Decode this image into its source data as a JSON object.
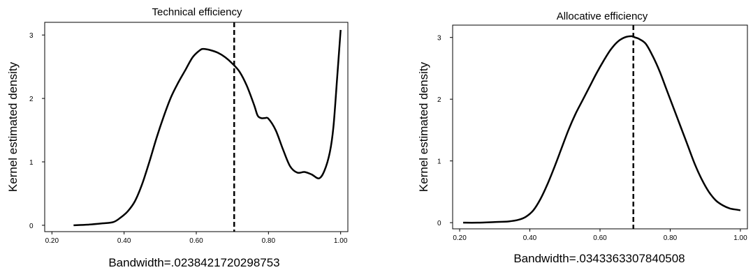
{
  "chart_data": [
    {
      "type": "line",
      "title": "Technical efficiency",
      "xlabel": "Bandwidth=.0238421720298753",
      "ylabel": "Kernel estimated density",
      "xlim": [
        0.18,
        1.02
      ],
      "ylim": [
        -0.1,
        3.2
      ],
      "xticks": [
        0.2,
        0.4,
        0.6,
        0.8,
        1.0
      ],
      "xtick_labels": [
        "0.20",
        "0.40",
        "0.60",
        "0.80",
        "1.00"
      ],
      "yticks": [
        0,
        1,
        2,
        3
      ],
      "ytick_labels": [
        "0",
        "1",
        "2",
        "3"
      ],
      "reference_line_x": 0.705,
      "grid": false,
      "series": [
        {
          "x": [
            0.26,
            0.3,
            0.34,
            0.37,
            0.39,
            0.41,
            0.43,
            0.45,
            0.47,
            0.49,
            0.51,
            0.53,
            0.55,
            0.57,
            0.59,
            0.61,
            0.62,
            0.64,
            0.66,
            0.68,
            0.7,
            0.72,
            0.74,
            0.76,
            0.77,
            0.78,
            0.79,
            0.8,
            0.82,
            0.84,
            0.86,
            0.88,
            0.9,
            0.92,
            0.94,
            0.955,
            0.97,
            0.98,
            0.99,
            1.0
          ],
          "y": [
            0.0,
            0.01,
            0.03,
            0.05,
            0.12,
            0.22,
            0.38,
            0.65,
            1.0,
            1.38,
            1.72,
            2.02,
            2.25,
            2.45,
            2.65,
            2.76,
            2.78,
            2.76,
            2.72,
            2.65,
            2.55,
            2.42,
            2.2,
            1.9,
            1.73,
            1.69,
            1.69,
            1.68,
            1.5,
            1.2,
            0.93,
            0.83,
            0.84,
            0.8,
            0.74,
            0.86,
            1.15,
            1.55,
            2.3,
            3.08
          ]
        }
      ]
    },
    {
      "type": "line",
      "title": "Allocative efficiency",
      "xlabel": "Bandwidth=.0343363307840508",
      "ylabel": "Kernel estimated density",
      "xlim": [
        0.18,
        1.02
      ],
      "ylim": [
        -0.1,
        3.2
      ],
      "xticks": [
        0.2,
        0.4,
        0.6,
        0.8,
        1.0
      ],
      "xtick_labels": [
        "0.20",
        "0.40",
        "0.60",
        "0.80",
        "1.00"
      ],
      "yticks": [
        0,
        1,
        2,
        3
      ],
      "ytick_labels": [
        "0",
        "1",
        "2",
        "3"
      ],
      "reference_line_x": 0.695,
      "grid": false,
      "series": [
        {
          "x": [
            0.21,
            0.25,
            0.3,
            0.34,
            0.37,
            0.39,
            0.41,
            0.43,
            0.45,
            0.47,
            0.49,
            0.51,
            0.53,
            0.55,
            0.57,
            0.59,
            0.61,
            0.63,
            0.65,
            0.67,
            0.69,
            0.7,
            0.71,
            0.73,
            0.75,
            0.77,
            0.79,
            0.81,
            0.83,
            0.85,
            0.87,
            0.89,
            0.91,
            0.93,
            0.95,
            0.97,
            0.99,
            1.0
          ],
          "y": [
            0.0,
            0.0,
            0.01,
            0.02,
            0.05,
            0.1,
            0.2,
            0.38,
            0.62,
            0.9,
            1.2,
            1.5,
            1.76,
            1.98,
            2.2,
            2.42,
            2.62,
            2.8,
            2.93,
            3.0,
            3.02,
            3.0,
            2.98,
            2.9,
            2.7,
            2.45,
            2.15,
            1.85,
            1.55,
            1.25,
            0.95,
            0.7,
            0.5,
            0.36,
            0.28,
            0.23,
            0.21,
            0.2
          ]
        }
      ]
    }
  ]
}
